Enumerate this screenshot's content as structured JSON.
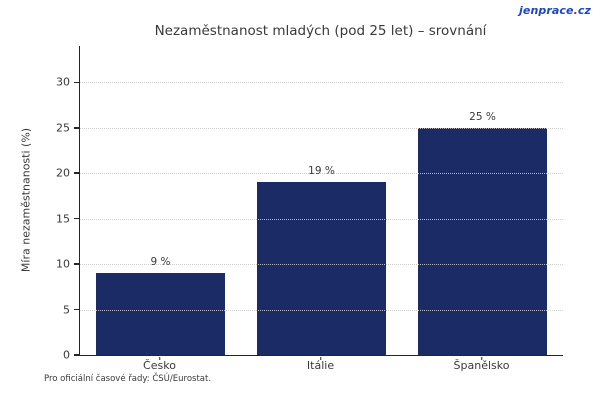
{
  "brand": {
    "logo_primary": "jenprace",
    "logo_dot": ".",
    "logo_tld": "cz",
    "logo_color": "#1a46c0",
    "logo_dot_color": "#c0241c"
  },
  "chart_data": {
    "type": "bar",
    "title": "Nezaměstnanost mladých (pod 25 let) – srovnání",
    "categories": [
      "Česko",
      "Itálie",
      "Španělsko"
    ],
    "values": [
      9,
      19,
      25
    ],
    "value_labels": [
      "9 %",
      "19 %",
      "25 %"
    ],
    "xlabel": "",
    "ylabel": "Míra nezaměstnanosti (%)",
    "ylim": [
      0,
      34
    ],
    "yticks": [
      0,
      5,
      10,
      15,
      20,
      25,
      30
    ],
    "grid": true,
    "grid_style": "dotted",
    "grid_color": "#c9c9c9",
    "bar_color": "#1b2b66",
    "text_color": "#3a3a3a",
    "legend_position": "none"
  },
  "footer": {
    "note": "Pro oficiální časové řady: ČSÚ/Eurostat."
  }
}
